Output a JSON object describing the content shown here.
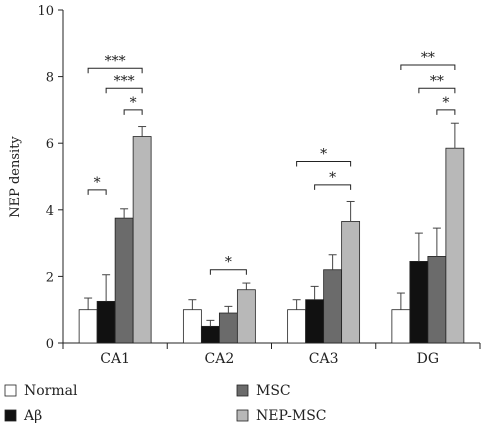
{
  "chart_data": {
    "type": "bar",
    "title": "",
    "xlabel": "",
    "ylabel": "NEP density",
    "ylim": [
      0,
      10
    ],
    "yticks": [
      0,
      2,
      4,
      6,
      8,
      10
    ],
    "grid": false,
    "legend_position": "bottom",
    "categories": [
      "CA1",
      "CA2",
      "CA3",
      "DG"
    ],
    "series": [
      {
        "name": "Normal",
        "color": "#ffffff",
        "values": [
          1.0,
          1.0,
          1.0,
          1.0
        ],
        "errors": [
          0.35,
          0.3,
          0.3,
          0.5
        ]
      },
      {
        "name": "Aβ",
        "color": "#111111",
        "values": [
          1.25,
          0.5,
          1.3,
          2.45
        ],
        "errors": [
          0.8,
          0.18,
          0.4,
          0.85
        ]
      },
      {
        "name": "MSC",
        "color": "#6b6b6b",
        "values": [
          3.75,
          0.9,
          2.2,
          2.6
        ],
        "errors": [
          0.28,
          0.2,
          0.45,
          0.85
        ]
      },
      {
        "name": "NEP-MSC",
        "color": "#b8b8b8",
        "values": [
          6.2,
          1.6,
          3.65,
          5.85
        ],
        "errors": [
          0.3,
          0.2,
          0.6,
          0.75
        ]
      }
    ],
    "annotations": [
      {
        "category": "CA1",
        "from": 0,
        "to": 3,
        "y": 8.25,
        "label": "***"
      },
      {
        "category": "CA1",
        "from": 1,
        "to": 3,
        "y": 7.65,
        "label": "***"
      },
      {
        "category": "CA1",
        "from": 2,
        "to": 3,
        "y": 7.0,
        "label": "*"
      },
      {
        "category": "CA1",
        "from": 0,
        "to": 1,
        "y": 4.6,
        "label": "*"
      },
      {
        "category": "CA2",
        "from": 1,
        "to": 3,
        "y": 2.2,
        "label": "*"
      },
      {
        "category": "CA3",
        "from": 0,
        "to": 3,
        "y": 5.45,
        "label": "*"
      },
      {
        "category": "CA3",
        "from": 1,
        "to": 3,
        "y": 4.75,
        "label": "*"
      },
      {
        "category": "DG",
        "from": 0,
        "to": 3,
        "y": 8.35,
        "label": "**"
      },
      {
        "category": "DG",
        "from": 1,
        "to": 3,
        "y": 7.65,
        "label": "**"
      },
      {
        "category": "DG",
        "from": 2,
        "to": 3,
        "y": 7.0,
        "label": "*"
      }
    ]
  }
}
